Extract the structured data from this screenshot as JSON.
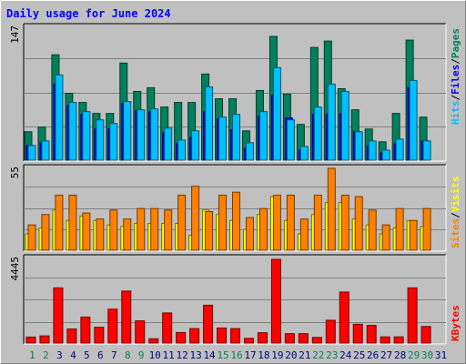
{
  "title": "Daily usage for June 2024",
  "colors": {
    "hits": "#00805c",
    "files": "#0000ff",
    "pages": "#00c0ff",
    "visits": "#ffff00",
    "sites": "#ff8000",
    "kbytes": "#ff0000",
    "weekend_label": "#00805c",
    "weekday_label": "#000080"
  },
  "chart_data": [
    {
      "type": "bar",
      "title": "Daily usage for June 2024",
      "categories": [
        "1",
        "2",
        "3",
        "4",
        "5",
        "6",
        "7",
        "8",
        "9",
        "10",
        "11",
        "12",
        "13",
        "14",
        "15",
        "16",
        "17",
        "18",
        "19",
        "20",
        "21",
        "22",
        "23",
        "24",
        "25",
        "26",
        "27",
        "28",
        "29",
        "30",
        "31"
      ],
      "weekend_days": [
        "1",
        "2",
        "8",
        "9",
        "15",
        "16",
        "22",
        "23",
        "29",
        "30"
      ],
      "ymax_label": "147",
      "ylim": [
        0,
        147
      ],
      "legend": [
        "Hits",
        "/",
        "Files",
        "/",
        "Pages"
      ],
      "series": [
        {
          "name": "Hits",
          "values": [
            31,
            36,
            115,
            73,
            63,
            51,
            51,
            106,
            75,
            79,
            58,
            63,
            63,
            94,
            67,
            67,
            32,
            76,
            135,
            72,
            39,
            123,
            130,
            78,
            55,
            34,
            20,
            51,
            131,
            47,
            0
          ]
        },
        {
          "name": "Files",
          "values": [
            16,
            19,
            83,
            60,
            50,
            34,
            34,
            62,
            54,
            53,
            30,
            18,
            25,
            53,
            45,
            33,
            13,
            48,
            71,
            46,
            11,
            50,
            50,
            51,
            31,
            15,
            8,
            18,
            79,
            21,
            0
          ]
        },
        {
          "name": "Pages",
          "values": [
            16,
            21,
            93,
            63,
            53,
            44,
            40,
            64,
            55,
            56,
            35,
            22,
            32,
            80,
            47,
            50,
            19,
            53,
            101,
            44,
            15,
            58,
            83,
            75,
            31,
            21,
            11,
            23,
            87,
            21,
            0
          ]
        }
      ]
    },
    {
      "type": "bar",
      "categories": [
        "1",
        "2",
        "3",
        "4",
        "5",
        "6",
        "7",
        "8",
        "9",
        "10",
        "11",
        "12",
        "13",
        "14",
        "15",
        "16",
        "17",
        "18",
        "19",
        "20",
        "21",
        "22",
        "23",
        "24",
        "25",
        "26",
        "27",
        "28",
        "29",
        "30",
        "31"
      ],
      "ymax_label": "55",
      "ylim": [
        0,
        55
      ],
      "legend": [
        "Sites",
        "/",
        "Visits"
      ],
      "series": [
        {
          "name": "Visits",
          "values": [
            11,
            15,
            27,
            20,
            23,
            20,
            17,
            16,
            18,
            18,
            18,
            18,
            10,
            27,
            24,
            20,
            14,
            24,
            36,
            20,
            11,
            24,
            32,
            32,
            21,
            17,
            11,
            15,
            20,
            16,
            0
          ]
        },
        {
          "name": "Sites",
          "values": [
            17,
            24,
            37,
            37,
            25,
            21,
            27,
            21,
            28,
            28,
            27,
            37,
            43,
            26,
            37,
            39,
            22,
            28,
            37,
            37,
            21,
            37,
            55,
            37,
            36,
            27,
            17,
            28,
            20,
            28,
            0
          ]
        }
      ]
    },
    {
      "type": "bar",
      "categories": [
        "1",
        "2",
        "3",
        "4",
        "5",
        "6",
        "7",
        "8",
        "9",
        "10",
        "11",
        "12",
        "13",
        "14",
        "15",
        "16",
        "17",
        "18",
        "19",
        "20",
        "21",
        "22",
        "23",
        "24",
        "25",
        "26",
        "27",
        "28",
        "29",
        "30",
        "31"
      ],
      "ymax_label": "4445",
      "ylim": [
        0,
        4445
      ],
      "legend": [
        "KBytes"
      ],
      "series": [
        {
          "name": "KBytes",
          "values": [
            320,
            380,
            2930,
            750,
            1380,
            840,
            1800,
            2760,
            1180,
            230,
            1600,
            560,
            770,
            2010,
            800,
            770,
            250,
            550,
            4445,
            500,
            500,
            300,
            1210,
            2710,
            1000,
            940,
            330,
            330,
            2930,
            880,
            0
          ]
        }
      ]
    }
  ]
}
